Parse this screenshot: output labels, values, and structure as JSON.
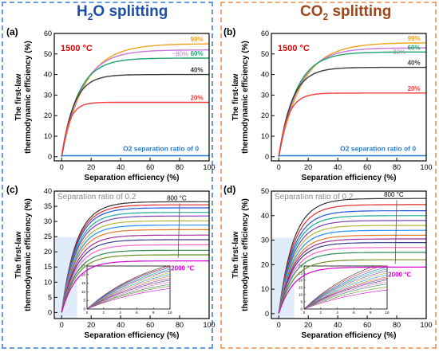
{
  "headers": {
    "h2o": {
      "pre": "H",
      "sub": "2",
      "post": "O splitting"
    },
    "co2": {
      "pre": "CO",
      "sub": "2",
      "post": " splitting"
    }
  },
  "colors": {
    "h2o_header": "#1f4ea8",
    "co2_header": "#a0461a",
    "h2o_frame": "#6a9bd8",
    "co2_frame": "#f0a878",
    "temp_label": "#e60000",
    "annotation_gray": "#8c8c8c",
    "inset_bg": "#d7e6f8"
  },
  "chart_data": [
    {
      "panel": "(a)",
      "type": "line",
      "xlabel": "Separation efficiency (%)",
      "ylabel_lines": [
        "The first-law",
        "thermodynamic efficiency (%)"
      ],
      "xlim": [
        -5,
        100
      ],
      "ylim": [
        -2,
        60
      ],
      "xticks": [
        0,
        20,
        40,
        60,
        80,
        100
      ],
      "yticks": [
        0,
        10,
        20,
        30,
        40,
        50,
        60
      ],
      "annotation": "1500 °C",
      "series": [
        {
          "name": "99%",
          "color": "#f0a21e",
          "plateau": 55,
          "k": 0.065
        },
        {
          "name": "~80%",
          "color": "#c978d8",
          "plateau": 52,
          "k": 0.075
        },
        {
          "name": "60%",
          "color": "#1ea36a",
          "plateau": 48,
          "k": 0.09
        },
        {
          "name": "40%",
          "color": "#3c3c3c",
          "plateau": 40,
          "k": 0.12
        },
        {
          "name": "20%",
          "color": "#f23c3c",
          "plateau": 26.5,
          "k": 0.2
        },
        {
          "name": "O2 separation ratio of 0",
          "color": "#1e7be0",
          "flat": 0.5
        }
      ]
    },
    {
      "panel": "(b)",
      "type": "line",
      "xlabel": "Separation efficiency (%)",
      "ylabel_lines": [
        "The first-law",
        "thermodynamic efficiency (%)"
      ],
      "xlim": [
        -5,
        100
      ],
      "ylim": [
        -2,
        60
      ],
      "xticks": [
        0,
        20,
        40,
        60,
        80,
        100
      ],
      "yticks": [
        0,
        10,
        20,
        30,
        40,
        50,
        60
      ],
      "annotation": "1500 °C",
      "series": [
        {
          "name": "99%",
          "color": "#f0a21e",
          "plateau": 55.5,
          "k": 0.065
        },
        {
          "name": "~80%",
          "color": "#c978d8",
          "plateau": 53,
          "k": 0.075
        },
        {
          "name": "60%",
          "color": "#1ea36a",
          "plateau": 51,
          "k": 0.085
        },
        {
          "name": "40%",
          "color": "#3c3c3c",
          "plateau": 43.5,
          "k": 0.11
        },
        {
          "name": "20%",
          "color": "#f23c3c",
          "plateau": 31,
          "k": 0.16
        },
        {
          "name": "O2 separation ratio of 0",
          "color": "#1e7be0",
          "flat": 0.5
        }
      ]
    },
    {
      "panel": "(c)",
      "type": "line",
      "xlabel": "Separation efficiency (%)",
      "ylabel_lines": [
        "The first-law",
        "thermodynamic efficiency (%)"
      ],
      "xlim": [
        -5,
        100
      ],
      "ylim": [
        -2,
        40
      ],
      "xticks": [
        0,
        20,
        40,
        60,
        80,
        100
      ],
      "yticks": [
        0,
        5,
        10,
        15,
        20,
        25,
        30,
        35,
        40
      ],
      "annotation": "Separation ratio of 0.2",
      "temp_high": "800 °C",
      "temp_low": "2000 °C",
      "inset": {
        "xticks": [
          0,
          2,
          4,
          6,
          8,
          10
        ],
        "yticks": [
          0,
          5,
          10,
          15,
          20,
          25
        ],
        "xlim": [
          0,
          10
        ],
        "ylim": [
          0,
          25
        ]
      },
      "plateaus": [
        36.5,
        35.5,
        34.5,
        33,
        31.8,
        30.2,
        28.8,
        27.3,
        25.5,
        24,
        22.3,
        20.5,
        19,
        17
      ],
      "series_colors": [
        "#333333",
        "#e52b2b",
        "#2255dd",
        "#1aa89a",
        "#7a3fbf",
        "#b5b53a",
        "#1e90ff",
        "#e07b24",
        "#a0309a",
        "#3b3b8a",
        "#ff66cc",
        "#2e8b57",
        "#6b8e23",
        "#d600d6"
      ]
    },
    {
      "panel": "(d)",
      "type": "line",
      "xlabel": "Separation efficiency (%)",
      "ylabel_lines": [
        "The first-law",
        "thermodynamic efficiency (%)"
      ],
      "xlim": [
        -5,
        100
      ],
      "ylim": [
        -2,
        50
      ],
      "xticks": [
        0,
        20,
        40,
        60,
        80,
        100
      ],
      "yticks": [
        0,
        10,
        20,
        30,
        40,
        50
      ],
      "annotation": "Separation ratio of 0.2",
      "temp_high": "800 °C",
      "temp_low": "2000 °C",
      "inset": {
        "xticks": [
          0,
          2,
          4,
          6,
          8,
          10
        ],
        "yticks": [
          0,
          5,
          10,
          15,
          20,
          25,
          30
        ],
        "xlim": [
          0,
          10
        ],
        "ylim": [
          0,
          30
        ]
      },
      "plateaus": [
        47,
        44.5,
        42,
        40,
        38,
        36,
        34,
        32,
        30.5,
        29,
        27,
        25,
        22,
        19
      ],
      "series_colors": [
        "#333333",
        "#e52b2b",
        "#2255dd",
        "#1aa89a",
        "#7a3fbf",
        "#b5b53a",
        "#1e90ff",
        "#e07b24",
        "#a0309a",
        "#3b3b8a",
        "#ff66cc",
        "#2e8b57",
        "#6b8e23",
        "#d600d6"
      ]
    }
  ]
}
